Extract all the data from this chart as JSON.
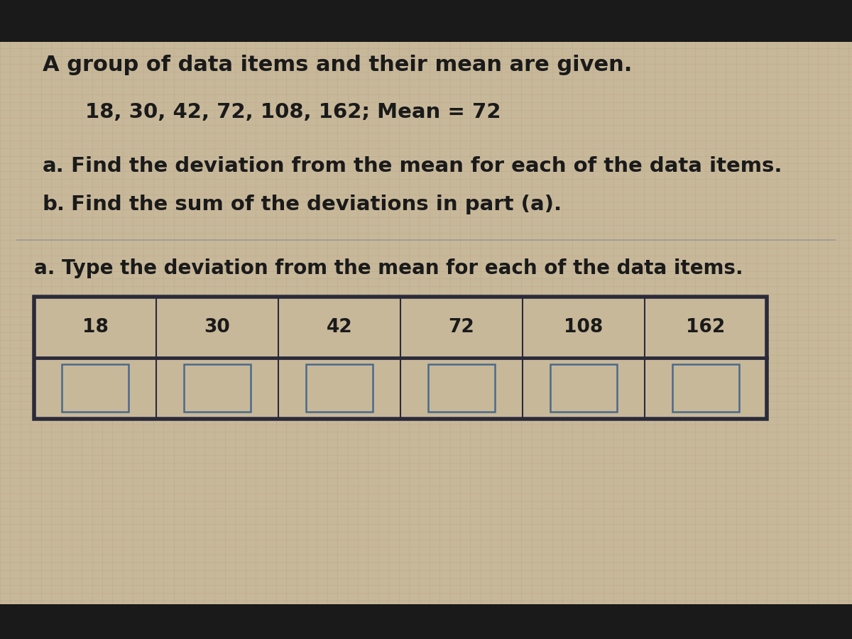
{
  "bg_color_top": "#1a1a1a",
  "bg_color_main": "#c8b89a",
  "grid_color": "#b8a888",
  "title_text": "A group of data items and their mean are given.",
  "data_line": "18, 30, 42, 72, 108, 162; Mean = 72",
  "part_a_label": "a.",
  "part_a_body": " Find the deviation from the mean for each of the data items.",
  "part_b_label": "b.",
  "part_b_body": " Find the sum of the deviations in part (a).",
  "answer_prompt": "a. Type the deviation from the mean for each of the data items.",
  "data_values": [
    18,
    30,
    42,
    72,
    108,
    162
  ],
  "text_color": "#1a1a1a",
  "table_border_color": "#2a2a3a",
  "cell_border_color": "#4a6a8a",
  "cell_fill_color": "#c8b89a",
  "table_fill_color": "#c8b89a",
  "divider_color": "#999990",
  "font_size_title": 22,
  "font_size_data": 21,
  "font_size_parts": 21,
  "font_size_prompt": 20,
  "font_size_table": 19,
  "top_bar_height": 0.065,
  "bot_bar_height": 0.055
}
